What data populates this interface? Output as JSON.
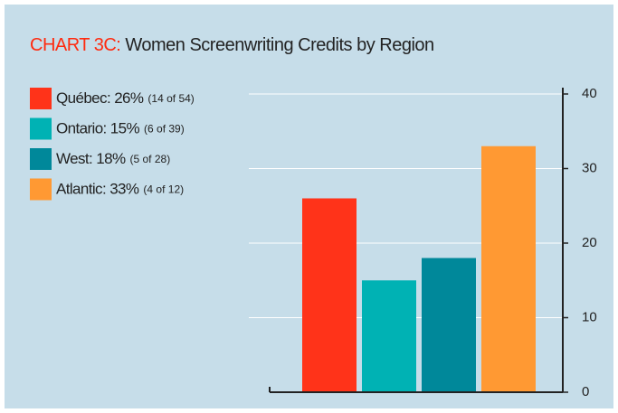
{
  "chart_data": {
    "type": "bar",
    "title_prefix": "CHART 3C:",
    "title": "Women Screenwriting Credits by Region",
    "legend": [
      {
        "name": "Québec: 26%",
        "note": "(14 of 54)"
      },
      {
        "name": "Ontario: 15%",
        "note": "(6 of 39)"
      },
      {
        "name": "West: 18%",
        "note": "(5 of 28)"
      },
      {
        "name": "Atlantic: 33%",
        "note": "(4 of 12)"
      }
    ],
    "values": [
      26,
      15,
      18,
      33
    ],
    "colors": [
      "#ff3319",
      "#00b2b4",
      "#00889a",
      "#ff9933"
    ],
    "ylim": [
      0,
      40
    ],
    "yticks": [
      0,
      10,
      20,
      30,
      40
    ],
    "grid": true
  }
}
